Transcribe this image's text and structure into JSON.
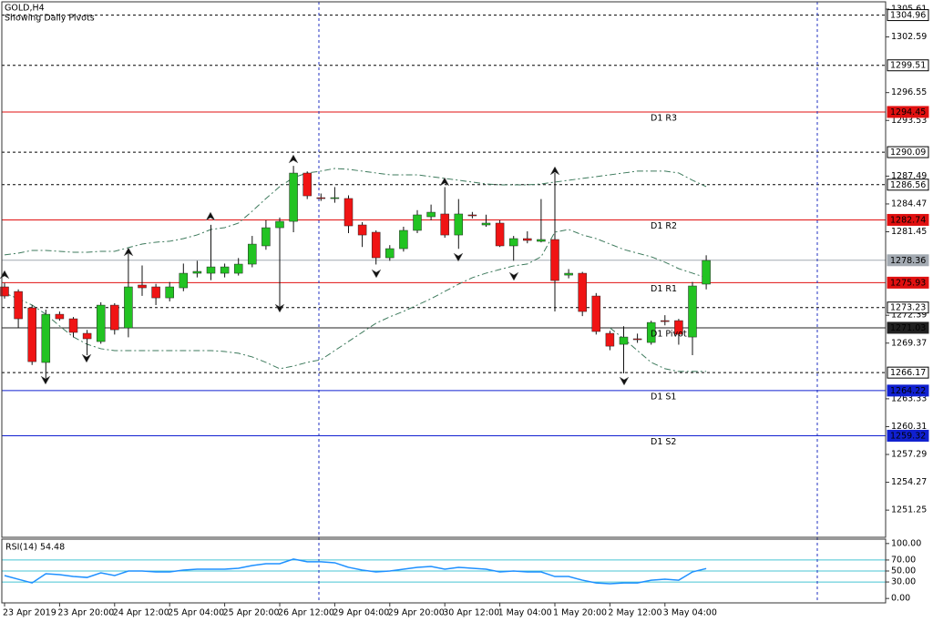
{
  "chart_data": [
    {
      "type": "candlestick",
      "title": "GOLD,H4",
      "subtitle": "Showing Daily Pivots",
      "categories": [
        "23 Apr 2019",
        null,
        null,
        null,
        "23 Apr 20:00",
        null,
        null,
        null,
        "24 Apr 12:00",
        null,
        null,
        null,
        "25 Apr 04:00",
        null,
        null,
        null,
        "25 Apr 20:00",
        null,
        null,
        null,
        "26 Apr 12:00",
        null,
        null,
        null,
        "29 Apr 04:00",
        null,
        null,
        null,
        "29 Apr 20:00",
        null,
        null,
        null,
        "30 Apr 12:00",
        null,
        null,
        null,
        "1 May 04:00",
        null,
        null,
        null,
        "1 May 20:00",
        null,
        null,
        null,
        "2 May 12:00",
        null,
        null,
        null,
        "3 May 04:00",
        null,
        null,
        null
      ],
      "ohlc": [
        [
          1275.47,
          1275.9,
          1274.2,
          1274.48
        ],
        [
          1274.97,
          1275.2,
          1271.0,
          1272.01
        ],
        [
          1273.2,
          1273.5,
          1267.0,
          1267.36
        ],
        [
          1267.27,
          1273.0,
          1265.09,
          1272.5
        ],
        [
          1272.5,
          1272.8,
          1271.8,
          1272.01
        ],
        [
          1272.01,
          1272.2,
          1270.0,
          1270.53
        ],
        [
          1270.43,
          1270.8,
          1268.06,
          1269.84
        ],
        [
          1269.54,
          1273.8,
          1269.3,
          1273.49
        ],
        [
          1273.49,
          1273.7,
          1270.3,
          1270.82
        ],
        [
          1271.02,
          1279.42,
          1270.0,
          1275.47
        ],
        [
          1275.67,
          1277.8,
          1274.5,
          1275.37
        ],
        [
          1275.47,
          1275.8,
          1273.5,
          1274.28
        ],
        [
          1274.28,
          1276.0,
          1273.9,
          1275.47
        ],
        [
          1275.37,
          1278.0,
          1275.0,
          1276.95
        ],
        [
          1276.95,
          1278.3,
          1276.5,
          1277.15
        ],
        [
          1276.95,
          1282.2,
          1276.2,
          1277.64
        ],
        [
          1276.95,
          1278.0,
          1276.5,
          1277.64
        ],
        [
          1276.95,
          1278.6,
          1276.7,
          1277.94
        ],
        [
          1277.94,
          1281.0,
          1277.6,
          1280.11
        ],
        [
          1279.92,
          1282.7,
          1279.5,
          1281.89
        ],
        [
          1281.89,
          1283.0,
          1273.3,
          1282.58
        ],
        [
          1282.58,
          1288.6,
          1281.4,
          1287.82
        ],
        [
          1287.82,
          1288.0,
          1285.0,
          1285.35
        ],
        [
          1285.15,
          1285.6,
          1284.8,
          1285.06
        ],
        [
          1285.06,
          1286.3,
          1284.6,
          1285.15
        ],
        [
          1285.06,
          1285.4,
          1281.3,
          1282.09
        ],
        [
          1282.19,
          1282.5,
          1279.8,
          1281.1
        ],
        [
          1281.4,
          1281.6,
          1277.9,
          1278.63
        ],
        [
          1278.63,
          1280.0,
          1278.3,
          1279.62
        ],
        [
          1279.62,
          1282.0,
          1279.3,
          1281.6
        ],
        [
          1281.6,
          1283.8,
          1281.3,
          1283.28
        ],
        [
          1283.08,
          1284.4,
          1282.7,
          1283.57
        ],
        [
          1283.38,
          1286.3,
          1280.8,
          1281.1
        ],
        [
          1281.1,
          1285.0,
          1279.6,
          1283.38
        ],
        [
          1283.28,
          1283.6,
          1282.9,
          1283.18
        ],
        [
          1282.19,
          1283.3,
          1282.0,
          1282.39
        ],
        [
          1282.39,
          1282.7,
          1279.8,
          1279.92
        ],
        [
          1279.92,
          1281.0,
          1278.3,
          1280.71
        ],
        [
          1280.71,
          1281.5,
          1280.2,
          1280.51
        ],
        [
          1280.41,
          1285.0,
          1280.3,
          1280.61
        ],
        [
          1280.61,
          1287.82,
          1272.8,
          1276.16
        ],
        [
          1276.75,
          1277.4,
          1276.4,
          1276.95
        ],
        [
          1276.95,
          1277.1,
          1272.3,
          1272.8
        ],
        [
          1274.48,
          1274.8,
          1270.3,
          1270.63
        ],
        [
          1270.43,
          1270.7,
          1268.6,
          1269.04
        ],
        [
          1269.24,
          1271.2,
          1266.08,
          1270.03
        ],
        [
          1269.84,
          1270.4,
          1269.4,
          1269.74
        ],
        [
          1269.44,
          1271.8,
          1269.2,
          1271.61
        ],
        [
          1271.81,
          1272.4,
          1271.3,
          1271.71
        ],
        [
          1271.81,
          1272.0,
          1269.2,
          1270.33
        ],
        [
          1270.03,
          1276.0,
          1268.06,
          1275.57
        ],
        [
          1275.77,
          1278.9,
          1275.2,
          1278.34
        ]
      ],
      "up_color": "#22c322",
      "down_color": "#f01414",
      "ylim": [
        1248.3,
        1306.4
      ],
      "yticks": [
        1305.61,
        1302.59,
        1296.55,
        1293.53,
        1287.49,
        1284.47,
        1281.45,
        1272.39,
        1269.37,
        1263.33,
        1260.31,
        1257.29,
        1254.27,
        1251.25
      ],
      "series": [
        {
          "color": "#3d7a5c",
          "values": [
            1278.94,
            1279.13,
            1279.43,
            1279.43,
            1279.33,
            1279.23,
            1279.23,
            1279.33,
            1279.33,
            1279.73,
            1280.12,
            1280.32,
            1280.42,
            1280.71,
            1281.11,
            1281.7,
            1281.9,
            1282.39,
            1283.68,
            1285.06,
            1286.35,
            1287.33,
            1287.83,
            1288.03,
            1288.32,
            1288.22,
            1288.03,
            1287.83,
            1287.63,
            1287.63,
            1287.63,
            1287.43,
            1287.24,
            1287.04,
            1286.84,
            1286.64,
            1286.54,
            1286.54,
            1286.54,
            1286.64,
            1286.84,
            1287.04,
            1287.24,
            1287.43,
            1287.63,
            1287.83,
            1288.03,
            1288.03,
            1288.03,
            1287.83,
            1287.04,
            1286.35
          ]
        },
        {
          "color": "#3d7a5c",
          "values": [
            1274.79,
            1274.19,
            1273.5,
            1272.51,
            1271.23,
            1270.04,
            1269.25,
            1268.76,
            1268.56,
            1268.56,
            1268.56,
            1268.56,
            1268.56,
            1268.56,
            1268.56,
            1268.56,
            1268.46,
            1268.27,
            1267.87,
            1267.28,
            1266.59,
            1266.88,
            1267.28,
            1267.57,
            1268.56,
            1269.55,
            1270.54,
            1271.53,
            1272.22,
            1272.81,
            1273.5,
            1274.19,
            1274.98,
            1275.77,
            1276.47,
            1276.96,
            1277.36,
            1277.75,
            1277.95,
            1278.74,
            1281.41,
            1281.7,
            1281.11,
            1280.71,
            1280.12,
            1279.53,
            1279.13,
            1278.74,
            1278.15,
            1277.45,
            1276.96,
            1276.47
          ]
        },
        {
          "color": "#3d7a5c",
          "values": [
            null,
            null,
            null,
            null,
            null,
            null,
            null,
            null,
            null,
            null,
            null,
            null,
            null,
            null,
            null,
            null,
            null,
            null,
            null,
            null,
            null,
            null,
            null,
            null,
            null,
            null,
            null,
            null,
            null,
            null,
            null,
            null,
            null,
            null,
            null,
            null,
            null,
            null,
            null,
            null,
            null,
            null,
            null,
            null,
            1271.03,
            1269.85,
            1268.56,
            1267.28,
            1266.59,
            1266.29,
            1266.29,
            1266.29
          ]
        }
      ],
      "levels": [
        {
          "value": 1304.96,
          "color": "#000000"
        },
        {
          "value": 1299.51,
          "color": "#000000"
        },
        {
          "value": 1290.09,
          "color": "#000000"
        },
        {
          "value": 1286.56,
          "color": "#000000"
        },
        {
          "value": 1273.23,
          "color": "#000000"
        },
        {
          "value": 1266.17,
          "color": "#000000"
        }
      ],
      "pivots": [
        {
          "name": "D1 R3",
          "value": 1294.45,
          "color": "#e01010"
        },
        {
          "name": "D1 R2",
          "value": 1282.74,
          "color": "#e01010"
        },
        {
          "name": "D1 R1",
          "value": 1275.93,
          "color": "#e01010"
        },
        {
          "name": "D1 Pivot",
          "value": 1271.03,
          "color": "#202020"
        },
        {
          "name": "D1 S1",
          "value": 1264.22,
          "color": "#1020d0"
        },
        {
          "name": "D1 S2",
          "value": 1259.32,
          "color": "#1020d0"
        }
      ],
      "price": {
        "value": 1278.36,
        "color": "#a3aab2"
      }
    },
    {
      "type": "line",
      "title": "RSI(14) 54.48",
      "color": "#1e90ff",
      "values": [
        41.7,
        35,
        28.3,
        45,
        43.3,
        40,
        38.3,
        46.7,
        41.7,
        50,
        50,
        48.3,
        48.3,
        51.7,
        53.3,
        53.3,
        53.3,
        55,
        60,
        63.3,
        63.3,
        71.7,
        66.7,
        66.7,
        65,
        56.7,
        51.7,
        48.3,
        50,
        53.3,
        56.7,
        58.3,
        53.3,
        56.7,
        55,
        53.3,
        48.3,
        50,
        48.3,
        48.3,
        40,
        40,
        33.3,
        28.3,
        26.7,
        28.3,
        28.3,
        33.3,
        35,
        33.3,
        48.3,
        54.48
      ],
      "ylim": [
        -8,
        108
      ],
      "yticks": [
        {
          "value": 100,
          "label": "100.00"
        },
        {
          "value": 70,
          "label": "70.00"
        },
        {
          "value": 50,
          "label": "50.00"
        },
        {
          "value": 30,
          "label": "30.00"
        },
        {
          "value": 0,
          "label": "0.00"
        }
      ],
      "levels": [
        70,
        50,
        30
      ],
      "level_color": "#48c4d4"
    }
  ]
}
